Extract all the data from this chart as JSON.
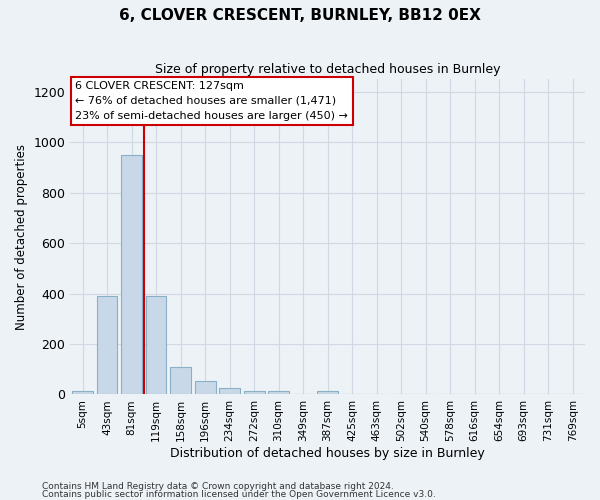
{
  "title": "6, CLOVER CRESCENT, BURNLEY, BB12 0EX",
  "subtitle": "Size of property relative to detached houses in Burnley",
  "xlabel": "Distribution of detached houses by size in Burnley",
  "ylabel": "Number of detached properties",
  "bar_color": "#c8d8e8",
  "bar_edge_color": "#8ab0c8",
  "categories": [
    "5sqm",
    "43sqm",
    "81sqm",
    "119sqm",
    "158sqm",
    "196sqm",
    "234sqm",
    "272sqm",
    "310sqm",
    "349sqm",
    "387sqm",
    "425sqm",
    "463sqm",
    "502sqm",
    "540sqm",
    "578sqm",
    "616sqm",
    "654sqm",
    "693sqm",
    "731sqm",
    "769sqm"
  ],
  "values": [
    15,
    390,
    950,
    390,
    110,
    52,
    25,
    15,
    12,
    0,
    12,
    0,
    0,
    0,
    0,
    0,
    0,
    0,
    0,
    0,
    0
  ],
  "ylim": [
    0,
    1250
  ],
  "yticks": [
    0,
    200,
    400,
    600,
    800,
    1000,
    1200
  ],
  "vline_x": 2.5,
  "vline_color": "#cc0000",
  "marker_label": "6 CLOVER CRESCENT: 127sqm",
  "marker_line1": "← 76% of detached houses are smaller (1,471)",
  "marker_line2": "23% of semi-detached houses are larger (450) →",
  "footer_line1": "Contains HM Land Registry data © Crown copyright and database right 2024.",
  "footer_line2": "Contains public sector information licensed under the Open Government Licence v3.0.",
  "bg_color": "#edf2f7",
  "grid_color": "#d0d8e4"
}
